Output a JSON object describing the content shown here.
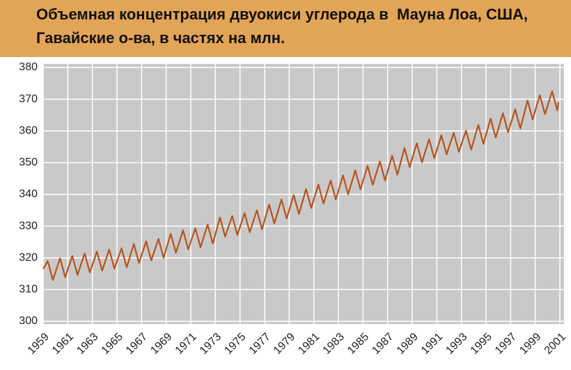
{
  "chart_data": {
    "type": "line",
    "title": [
      "Объемная концентрация двуокиси углерода в  Мауна Лоа, США,",
      "Гавайские о-ва, в частях на млн."
    ],
    "x": [
      1959,
      1959.37,
      1959.79,
      1960.37,
      1960.79,
      1961.37,
      1961.79,
      1962.37,
      1962.79,
      1963.37,
      1963.79,
      1964.37,
      1964.79,
      1965.37,
      1965.79,
      1966.37,
      1966.79,
      1967.37,
      1967.79,
      1968.37,
      1968.79,
      1969.37,
      1969.79,
      1970.37,
      1970.79,
      1971.37,
      1971.79,
      1972.37,
      1972.79,
      1973.37,
      1973.79,
      1974.37,
      1974.79,
      1975.37,
      1975.79,
      1976.37,
      1976.79,
      1977.37,
      1977.79,
      1978.37,
      1978.79,
      1979.37,
      1979.79,
      1980.37,
      1980.79,
      1981.37,
      1981.79,
      1982.37,
      1982.79,
      1983.37,
      1983.79,
      1984.37,
      1984.79,
      1985.37,
      1985.79,
      1986.37,
      1986.79,
      1987.37,
      1987.79,
      1988.37,
      1988.79,
      1989.37,
      1989.79,
      1990.37,
      1990.79,
      1991.37,
      1991.79,
      1992.37,
      1992.79,
      1993.37,
      1993.79,
      1994.37,
      1994.79,
      1995.37,
      1995.79,
      1996.37,
      1996.79,
      1997.37,
      1997.79,
      1998.37,
      1998.79,
      1999.37,
      1999.79,
      2000.37,
      2000.79,
      2000.9
    ],
    "series": [
      {
        "color": "#b5531b",
        "values": [
          316.5,
          319.0,
          313.0,
          319.9,
          313.9,
          320.6,
          314.6,
          321.4,
          315.4,
          322.0,
          316.0,
          322.6,
          316.6,
          323.0,
          317.0,
          324.4,
          318.4,
          325.2,
          319.2,
          326.0,
          320.0,
          327.6,
          321.6,
          328.7,
          322.7,
          329.3,
          323.3,
          330.5,
          324.5,
          332.7,
          326.7,
          333.2,
          327.2,
          334.1,
          328.1,
          335.0,
          329.0,
          336.8,
          330.8,
          338.4,
          332.4,
          339.8,
          333.8,
          341.7,
          335.7,
          343.1,
          337.1,
          344.4,
          338.4,
          346.0,
          340.0,
          347.6,
          341.6,
          349.0,
          343.0,
          350.4,
          344.4,
          352.2,
          346.2,
          354.6,
          348.6,
          356.1,
          350.1,
          357.4,
          351.4,
          358.6,
          352.6,
          359.4,
          353.4,
          360.1,
          354.1,
          361.9,
          355.9,
          363.9,
          357.9,
          365.6,
          359.6,
          366.8,
          360.8,
          369.6,
          363.6,
          371.3,
          365.3,
          372.5,
          366.5,
          369.0
        ]
      }
    ],
    "xlim": [
      1959,
      2001
    ],
    "xticks": [
      1959,
      1961,
      1963,
      1965,
      1967,
      1969,
      1971,
      1973,
      1975,
      1977,
      1979,
      1981,
      1983,
      1985,
      1987,
      1989,
      1991,
      1993,
      1995,
      1997,
      1999,
      2001
    ],
    "ylim": [
      300,
      380
    ],
    "yticks": [
      300,
      310,
      320,
      330,
      340,
      350,
      360,
      370,
      380
    ],
    "grid": true
  }
}
